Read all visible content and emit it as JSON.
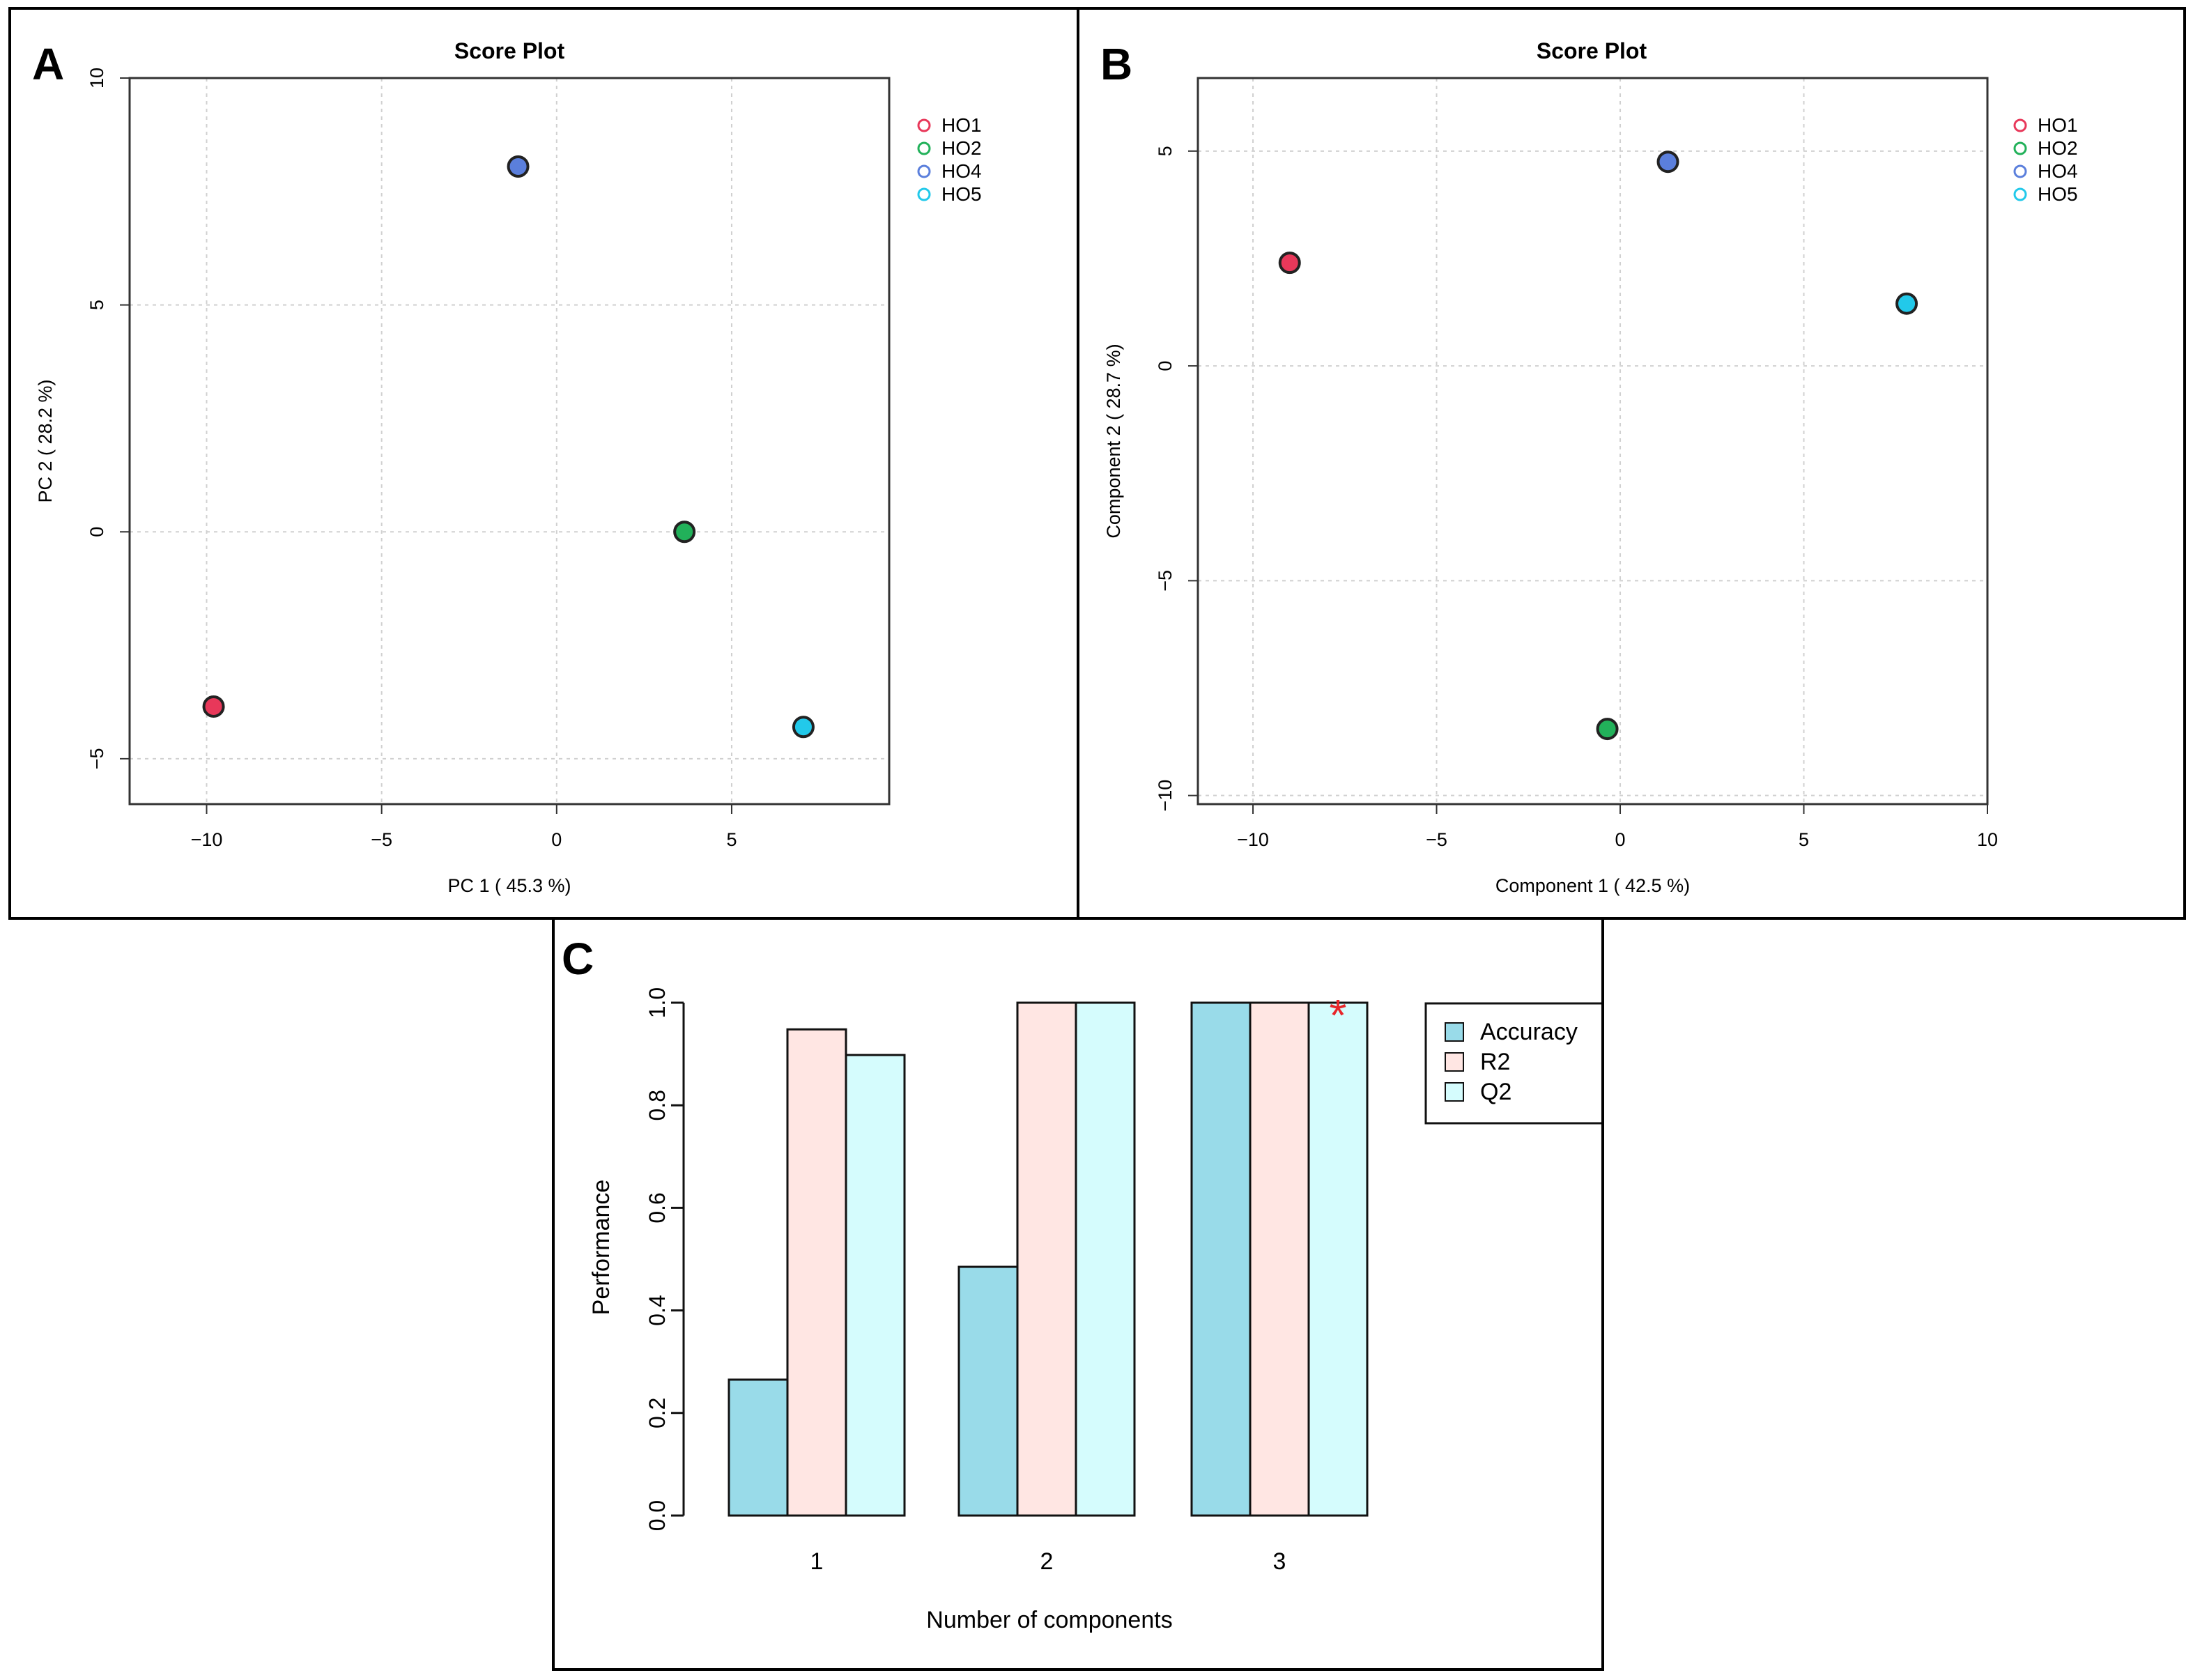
{
  "chart_data": [
    {
      "panel_label": "A",
      "type": "scatter",
      "title": "Score   Plot",
      "xlabel": "PC 1 ( 45.3 %)",
      "ylabel": "PC 2 ( 28.2 %)",
      "xlim": [
        -12.2,
        9.5
      ],
      "ylim": [
        -6,
        10
      ],
      "xticks": [
        -10,
        -5,
        0,
        5
      ],
      "yticks": [
        -5,
        0,
        5,
        10
      ],
      "grid": true,
      "legend_position": "top-right",
      "series": [
        {
          "name": "HO1",
          "color": "#e8385a",
          "x": -9.8,
          "y": -3.85
        },
        {
          "name": "HO2",
          "color": "#22b15a",
          "x": 3.65,
          "y": 0.0
        },
        {
          "name": "HO4",
          "color": "#5b7fdc",
          "x": -1.1,
          "y": 8.05
        },
        {
          "name": "HO5",
          "color": "#22c9ea",
          "x": 7.05,
          "y": -4.3
        }
      ]
    },
    {
      "panel_label": "B",
      "type": "scatter",
      "title": "Score   Plot",
      "xlabel": "Component 1 ( 42.5 %)",
      "ylabel": "Component 2 ( 28.7 %)",
      "xlim": [
        -11.5,
        10
      ],
      "ylim": [
        -10.2,
        6.7
      ],
      "xticks": [
        -10,
        -5,
        0,
        5,
        10
      ],
      "yticks": [
        -10,
        -5,
        0,
        5
      ],
      "grid": true,
      "legend_position": "top-right",
      "series": [
        {
          "name": "HO1",
          "color": "#e8385a",
          "x": -9.0,
          "y": 2.4
        },
        {
          "name": "HO2",
          "color": "#22b15a",
          "x": -0.35,
          "y": -8.45
        },
        {
          "name": "HO4",
          "color": "#5b7fdc",
          "x": 1.3,
          "y": 4.75
        },
        {
          "name": "HO5",
          "color": "#22c9ea",
          "x": 7.8,
          "y": 1.45
        }
      ]
    },
    {
      "panel_label": "C",
      "type": "bar",
      "title": "",
      "xlabel": "Number of components",
      "ylabel": "Performance",
      "categories": [
        "1",
        "2",
        "3"
      ],
      "ylim": [
        0,
        1
      ],
      "yticks": [
        "0.0",
        "0.2",
        "0.4",
        "0.6",
        "0.8",
        "1.0"
      ],
      "legend_position": "top-right",
      "series": [
        {
          "name": "Accuracy",
          "color": "#99dbe9",
          "values": [
            0.265,
            0.485,
            1.0
          ]
        },
        {
          "name": "R2",
          "color": "#ffe6e3",
          "values": [
            0.948,
            1.0,
            1.0
          ]
        },
        {
          "name": "Q2",
          "color": "#d5fcfd",
          "values": [
            0.898,
            1.0,
            1.0
          ]
        }
      ],
      "best_marker": {
        "symbol": "*",
        "category": "3",
        "series": "Q2",
        "color": "#e8262a"
      }
    }
  ]
}
